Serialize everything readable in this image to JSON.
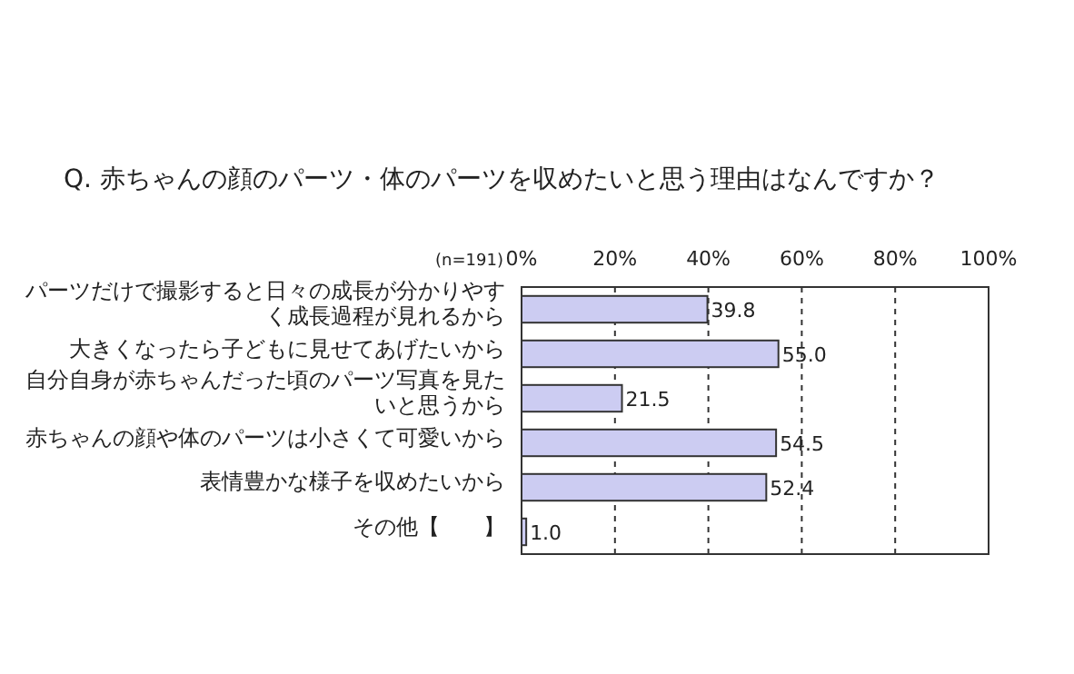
{
  "chart_data": {
    "type": "bar",
    "orientation": "horizontal",
    "title": "Q. 赤ちゃんの顔のパーツ・体のパーツを収めたいと思う理由はなんですか？",
    "categories": [
      "パーツだけで撮影すると日々の成長が分かりやすく成長過程が見れるから",
      "大きくなったら子どもに見せてあげたいから",
      "自分自身が赤ちゃんだった頃のパーツ写真を見たいと思うから",
      "赤ちゃんの顔や体のパーツは小さくて可愛いから",
      "表情豊かな様子を収めたいから",
      "その他【　　】"
    ],
    "values": [
      39.8,
      55.0,
      21.5,
      54.5,
      52.4,
      1.0
    ],
    "value_labels": [
      "39.8",
      "55.0",
      "21.5",
      "54.5",
      "52.4",
      "1.0"
    ],
    "color": "#ccccf2",
    "xlim": [
      0,
      100
    ],
    "xticks": [
      {
        "value": 0,
        "label": "0%"
      },
      {
        "value": 20,
        "label": "20%"
      },
      {
        "value": 40,
        "label": "40%"
      },
      {
        "value": 60,
        "label": "60%"
      },
      {
        "value": 80,
        "label": "80%"
      },
      {
        "value": 100,
        "label": "100%"
      }
    ],
    "grid": "x",
    "annotations": [
      "(n=191)"
    ]
  }
}
